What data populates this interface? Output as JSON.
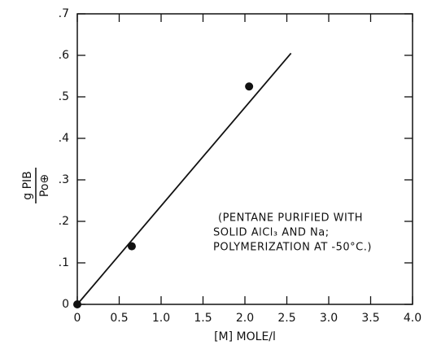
{
  "chart_data": {
    "type": "scatter",
    "xlabel": "[M] MOLE/l",
    "ylabel": {
      "numerator": "g PIB",
      "denominator": "Po⊕"
    },
    "annotation": [
      "(PENTANE PURIFIED WITH",
      "SOLID AlCl₃ AND Na;",
      "POLYMERIZATION AT -50°C.)"
    ],
    "xlim": [
      0,
      4
    ],
    "ylim": [
      0,
      0.7
    ],
    "xticks": [
      0,
      0.5,
      {
        "value": 1,
        "label": "1.0"
      },
      1.5,
      {
        "value": 2,
        "label": "2.0"
      },
      2.5,
      {
        "value": 3,
        "label": "3.0"
      },
      3.5,
      {
        "value": 4,
        "label": "4.0"
      }
    ],
    "yticks": [
      0,
      {
        "value": 0.1,
        "label": ".1"
      },
      {
        "value": 0.2,
        "label": ".2"
      },
      {
        "value": 0.3,
        "label": ".3"
      },
      {
        "value": 0.4,
        "label": ".4"
      },
      {
        "value": 0.5,
        "label": ".5"
      },
      {
        "value": 0.6,
        "label": ".6"
      },
      {
        "value": 0.7,
        "label": ".7"
      }
    ],
    "points": {
      "x": [
        0,
        0.65,
        2.05
      ],
      "y": [
        0,
        0.14,
        0.525
      ],
      "color": "#111111"
    },
    "fit_line": {
      "x": [
        0,
        2.55
      ],
      "y": [
        0,
        0.605
      ],
      "color": "#111111"
    }
  }
}
